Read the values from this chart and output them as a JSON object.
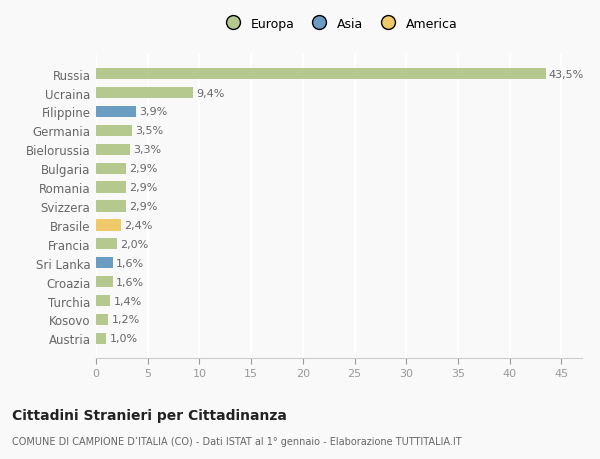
{
  "countries": [
    "Russia",
    "Ucraina",
    "Filippine",
    "Germania",
    "Bielorussia",
    "Bulgaria",
    "Romania",
    "Svizzera",
    "Brasile",
    "Francia",
    "Sri Lanka",
    "Croazia",
    "Turchia",
    "Kosovo",
    "Austria"
  ],
  "values": [
    43.5,
    9.4,
    3.9,
    3.5,
    3.3,
    2.9,
    2.9,
    2.9,
    2.4,
    2.0,
    1.6,
    1.6,
    1.4,
    1.2,
    1.0
  ],
  "labels": [
    "43,5%",
    "9,4%",
    "3,9%",
    "3,5%",
    "3,3%",
    "2,9%",
    "2,9%",
    "2,9%",
    "2,4%",
    "2,0%",
    "1,6%",
    "1,6%",
    "1,4%",
    "1,2%",
    "1,0%"
  ],
  "continents": [
    "Europa",
    "Europa",
    "Asia",
    "Europa",
    "Europa",
    "Europa",
    "Europa",
    "Europa",
    "America",
    "Europa",
    "Asia",
    "Europa",
    "Europa",
    "Europa",
    "Europa"
  ],
  "colors": {
    "Europa": "#b5c98e",
    "Asia": "#6b9dc2",
    "America": "#f0c96a"
  },
  "legend": [
    "Europa",
    "Asia",
    "America"
  ],
  "legend_colors": [
    "#b5c98e",
    "#6b9dc2",
    "#f0c96a"
  ],
  "title": "Cittadini Stranieri per Cittadinanza",
  "subtitle": "COMUNE DI CAMPIONE D’ITALIA (CO) - Dati ISTAT al 1° gennaio - Elaborazione TUTTITALIA.IT",
  "xlim": [
    0,
    47
  ],
  "xticks": [
    0,
    5,
    10,
    15,
    20,
    25,
    30,
    35,
    40,
    45
  ],
  "background_color": "#f9f9f9",
  "grid_color": "#ffffff"
}
